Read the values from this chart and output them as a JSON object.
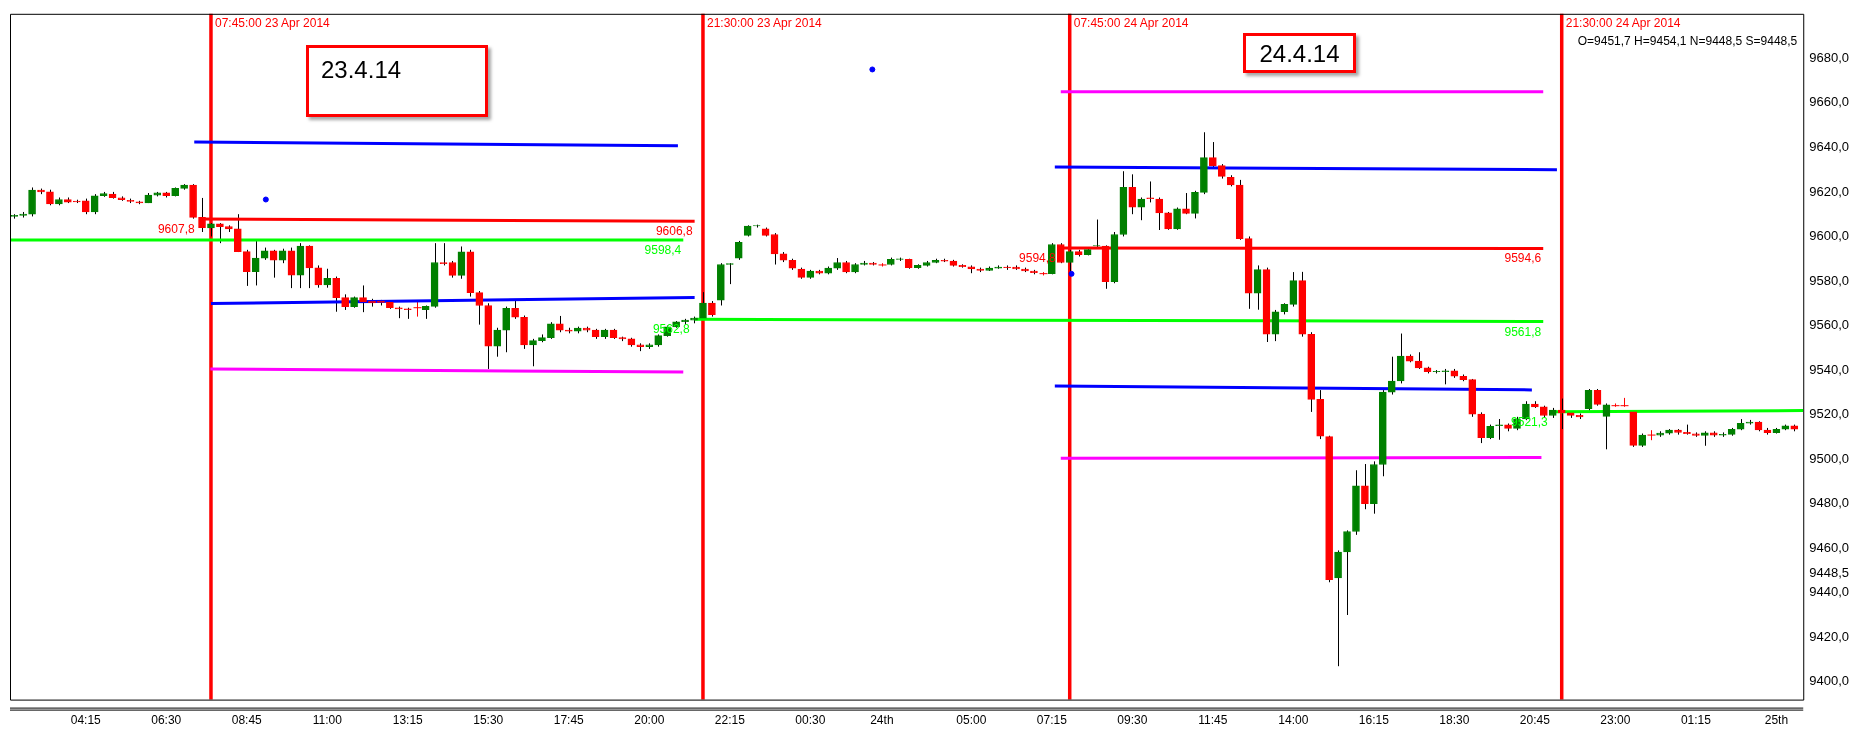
{
  "chart_data": {
    "type": "candlestick",
    "x": [
      "2014-04-23T02:15",
      "2014-04-23T02:30",
      "2014-04-23T02:45",
      "2014-04-23T03:00",
      "2014-04-23T03:15",
      "2014-04-23T03:30",
      "2014-04-23T03:45",
      "2014-04-23T04:00",
      "2014-04-23T04:15",
      "2014-04-23T04:30",
      "2014-04-23T04:45",
      "2014-04-23T05:00",
      "2014-04-23T05:15",
      "2014-04-23T05:30",
      "2014-04-23T05:45",
      "2014-04-23T06:00",
      "2014-04-23T06:15",
      "2014-04-23T06:30",
      "2014-04-23T06:45",
      "2014-04-23T07:00",
      "2014-04-23T07:15",
      "2014-04-23T07:30",
      "2014-04-23T07:45",
      "2014-04-23T08:00",
      "2014-04-23T08:15",
      "2014-04-23T08:30",
      "2014-04-23T08:45",
      "2014-04-23T09:00",
      "2014-04-23T09:15",
      "2014-04-23T09:30",
      "2014-04-23T09:45",
      "2014-04-23T10:00",
      "2014-04-23T10:15",
      "2014-04-23T10:30",
      "2014-04-23T10:45",
      "2014-04-23T11:00",
      "2014-04-23T11:15",
      "2014-04-23T11:30",
      "2014-04-23T11:45",
      "2014-04-23T12:00",
      "2014-04-23T12:15",
      "2014-04-23T12:30",
      "2014-04-23T12:45",
      "2014-04-23T13:00",
      "2014-04-23T13:15",
      "2014-04-23T13:30",
      "2014-04-23T13:45",
      "2014-04-23T14:00",
      "2014-04-23T14:15",
      "2014-04-23T14:30",
      "2014-04-23T14:45",
      "2014-04-23T15:00",
      "2014-04-23T15:15",
      "2014-04-23T15:30",
      "2014-04-23T15:45",
      "2014-04-23T16:00",
      "2014-04-23T16:15",
      "2014-04-23T16:30",
      "2014-04-23T16:45",
      "2014-04-23T17:00",
      "2014-04-23T17:15",
      "2014-04-23T17:30",
      "2014-04-23T17:45",
      "2014-04-23T18:00",
      "2014-04-23T18:15",
      "2014-04-23T18:30",
      "2014-04-23T18:45",
      "2014-04-23T19:00",
      "2014-04-23T19:15",
      "2014-04-23T19:30",
      "2014-04-23T19:45",
      "2014-04-23T20:00",
      "2014-04-23T20:15",
      "2014-04-23T20:30",
      "2014-04-23T20:45",
      "2014-04-23T21:00",
      "2014-04-23T21:15",
      "2014-04-23T21:30",
      "2014-04-23T21:45",
      "2014-04-23T22:00",
      "2014-04-23T22:15",
      "2014-04-23T22:30",
      "2014-04-23T22:45",
      "2014-04-23T23:00",
      "2014-04-23T23:15",
      "2014-04-23T23:30",
      "2014-04-23T23:45",
      "2014-04-24T00:00",
      "2014-04-24T00:15",
      "2014-04-24T00:30",
      "2014-04-24T00:45",
      "2014-04-24T01:00",
      "2014-04-24T01:15",
      "2014-04-24T01:30",
      "2014-04-24T01:45",
      "2014-04-24T02:00",
      "2014-04-24T02:15",
      "2014-04-24T02:30",
      "2014-04-24T02:45",
      "2014-04-24T03:00",
      "2014-04-24T03:15",
      "2014-04-24T03:30",
      "2014-04-24T03:45",
      "2014-04-24T04:00",
      "2014-04-24T04:15",
      "2014-04-24T04:30",
      "2014-04-24T04:45",
      "2014-04-24T05:00",
      "2014-04-24T05:15",
      "2014-04-24T05:30",
      "2014-04-24T05:45",
      "2014-04-24T06:00",
      "2014-04-24T06:15",
      "2014-04-24T06:30",
      "2014-04-24T06:45",
      "2014-04-24T07:00",
      "2014-04-24T07:15",
      "2014-04-24T07:30",
      "2014-04-24T07:45",
      "2014-04-24T08:00",
      "2014-04-24T08:15",
      "2014-04-24T08:30",
      "2014-04-24T08:45",
      "2014-04-24T09:00",
      "2014-04-24T09:15",
      "2014-04-24T09:30",
      "2014-04-24T09:45",
      "2014-04-24T10:00",
      "2014-04-24T10:15",
      "2014-04-24T10:30",
      "2014-04-24T10:45",
      "2014-04-24T11:00",
      "2014-04-24T11:15",
      "2014-04-24T11:30",
      "2014-04-24T11:45",
      "2014-04-24T12:00",
      "2014-04-24T12:15",
      "2014-04-24T12:30",
      "2014-04-24T12:45",
      "2014-04-24T13:00",
      "2014-04-24T13:15",
      "2014-04-24T13:30",
      "2014-04-24T13:45",
      "2014-04-24T14:00",
      "2014-04-24T14:15",
      "2014-04-24T14:30",
      "2014-04-24T14:45",
      "2014-04-24T15:00",
      "2014-04-24T15:15",
      "2014-04-24T15:30",
      "2014-04-24T15:45",
      "2014-04-24T16:00",
      "2014-04-24T16:15",
      "2014-04-24T16:30",
      "2014-04-24T16:45",
      "2014-04-24T17:00",
      "2014-04-24T17:15",
      "2014-04-24T17:30",
      "2014-04-24T17:45",
      "2014-04-24T18:00",
      "2014-04-24T18:15",
      "2014-04-24T18:30",
      "2014-04-24T18:45",
      "2014-04-24T19:00",
      "2014-04-24T19:15",
      "2014-04-24T19:30",
      "2014-04-24T19:45",
      "2014-04-24T20:00",
      "2014-04-24T20:15",
      "2014-04-24T20:30",
      "2014-04-24T20:45",
      "2014-04-24T21:00",
      "2014-04-24T21:15",
      "2014-04-24T21:30",
      "2014-04-24T21:45",
      "2014-04-24T22:00",
      "2014-04-24T22:15",
      "2014-04-24T22:30",
      "2014-04-24T22:45",
      "2014-04-24T23:00",
      "2014-04-24T23:15",
      "2014-04-24T23:30",
      "2014-04-24T23:45",
      "2014-04-25T00:00",
      "2014-04-25T00:15",
      "2014-04-25T00:30",
      "2014-04-25T00:45",
      "2014-04-25T01:00",
      "2014-04-25T01:15",
      "2014-04-25T01:30",
      "2014-04-25T01:45",
      "2014-04-25T02:00",
      "2014-04-25T02:15",
      "2014-04-25T02:30",
      "2014-04-25T02:45",
      "2014-04-25T03:00",
      "2014-04-25T03:15",
      "2014-04-25T03:30",
      "2014-04-25T03:45",
      "2014-04-25T04:00"
    ],
    "ohlc": [
      [
        9609,
        9610,
        9608,
        9609.5
      ],
      [
        9609.5,
        9611,
        9608.5,
        9610
      ],
      [
        9610,
        9622,
        9609,
        9620.8
      ],
      [
        9620.8,
        9621.5,
        9619,
        9620
      ],
      [
        9620,
        9621,
        9614,
        9614.6
      ],
      [
        9614.6,
        9617.5,
        9614,
        9616.6
      ],
      [
        9616.6,
        9617.5,
        9615,
        9615.4
      ],
      [
        9615.9,
        9616.5,
        9615,
        9615.5
      ],
      [
        9616,
        9617,
        9610,
        9611
      ],
      [
        9611,
        9619,
        9610,
        9618.3
      ],
      [
        9618.3,
        9620,
        9617.8,
        9619.3
      ],
      [
        9619,
        9620,
        9617,
        9617.4
      ],
      [
        9617.4,
        9618,
        9616,
        9616.5
      ],
      [
        9616.2,
        9617,
        9615,
        9615.7
      ],
      [
        9615.5,
        9616,
        9614.5,
        9615.1
      ],
      [
        9615.1,
        9619.5,
        9615,
        9618.6
      ],
      [
        9618.6,
        9620,
        9618,
        9619.6
      ],
      [
        9619.6,
        9620,
        9617.5,
        9618.3
      ],
      [
        9618.3,
        9622,
        9618,
        9621.6
      ],
      [
        9621.6,
        9623.5,
        9621,
        9623.1
      ],
      [
        9623.1,
        9623.5,
        9608,
        9608.6
      ],
      [
        9608.6,
        9617.3,
        9602,
        9604
      ],
      [
        9603.8,
        9606,
        9600,
        9605.7
      ],
      [
        9605.7,
        9606,
        9597,
        9604.4
      ],
      [
        9604.4,
        9605,
        9602,
        9603.4
      ],
      [
        9603.4,
        9610,
        9593,
        9593.2
      ],
      [
        9593.2,
        9594,
        9577.8,
        9584.2
      ],
      [
        9584.2,
        9598,
        9578,
        9590.3
      ],
      [
        9590.3,
        9595,
        9589.5,
        9593.5
      ],
      [
        9593.5,
        9594,
        9581.5,
        9589.3
      ],
      [
        9589.3,
        9594.5,
        9588,
        9593.6
      ],
      [
        9593.6,
        9595,
        9576.8,
        9582.6
      ],
      [
        9582.6,
        9597,
        9576.8,
        9595.7
      ],
      [
        9595.7,
        9596,
        9576.8,
        9585.9
      ],
      [
        9585.9,
        9587,
        9577,
        9578.2
      ],
      [
        9578.2,
        9585.5,
        9577,
        9581.2
      ],
      [
        9581.2,
        9582,
        9566.2,
        9572.5
      ],
      [
        9572.5,
        9574,
        9567,
        9568.5
      ],
      [
        9568.5,
        9573,
        9568,
        9572.5
      ],
      [
        9572.5,
        9578,
        9566,
        9570.6
      ],
      [
        9571,
        9572,
        9568.5,
        9570.2
      ],
      [
        9571,
        9571.5,
        9569,
        9570.4
      ],
      [
        9570.4,
        9571,
        9567.5,
        9568
      ],
      [
        9568,
        9568.5,
        9563.3,
        9567.5
      ],
      [
        9567.5,
        9568,
        9563,
        9567.1
      ],
      [
        9568,
        9571,
        9564,
        9568
      ],
      [
        9567.1,
        9569,
        9563,
        9568.6
      ],
      [
        9568.6,
        9597,
        9568,
        9588.3
      ],
      [
        9588.3,
        9597,
        9587,
        9587.8
      ],
      [
        9588.3,
        9589,
        9581.5,
        9582.5
      ],
      [
        9582.5,
        9595.5,
        9581,
        9593.1
      ],
      [
        9593.1,
        9594,
        9573,
        9574.8
      ],
      [
        9574.8,
        9575.5,
        9560.4,
        9569
      ],
      [
        9569,
        9570,
        9540.5,
        9550.7
      ],
      [
        9550.7,
        9559,
        9546,
        9557.9
      ],
      [
        9557.9,
        9568.5,
        9548,
        9567.7
      ],
      [
        9567.7,
        9571,
        9563,
        9563.7
      ],
      [
        9563.7,
        9564.5,
        9549.5,
        9551.3
      ],
      [
        9551.3,
        9554,
        9541.7,
        9553.2
      ],
      [
        9553.2,
        9556,
        9552.5,
        9554.6
      ],
      [
        9554.6,
        9561.5,
        9554,
        9560.8
      ],
      [
        9560.8,
        9564.3,
        9557,
        9557.9
      ],
      [
        9557.9,
        9559,
        9556.5,
        9557.5
      ],
      [
        9557.5,
        9559.5,
        9556.5,
        9558.8
      ],
      [
        9558.8,
        9559.5,
        9557,
        9557.9
      ],
      [
        9557.9,
        9558.5,
        9554,
        9555
      ],
      [
        9555,
        9558.5,
        9554,
        9557.9
      ],
      [
        9557.9,
        9558.5,
        9554,
        9554.6
      ],
      [
        9554.6,
        9555,
        9553,
        9554
      ],
      [
        9554,
        9554.5,
        9550.5,
        9551.3
      ],
      [
        9551.3,
        9552,
        9548.5,
        9550.5
      ],
      [
        9550.5,
        9552,
        9549.5,
        9551.3
      ],
      [
        9551.3,
        9556,
        9550.5,
        9555.5
      ],
      [
        9555.5,
        9560,
        9555,
        9559.4
      ],
      [
        9559.4,
        9562,
        9559,
        9561.7
      ],
      [
        9561.7,
        9563,
        9560.5,
        9562.4
      ],
      [
        9562.4,
        9564,
        9561,
        9563.3
      ],
      [
        9563.3,
        9575,
        9562.5,
        9570.1
      ],
      [
        9570.1,
        9571,
        9564,
        9564.9
      ],
      [
        9571.4,
        9588,
        9569,
        9587.4
      ],
      [
        9587.4,
        9588,
        9578.6,
        9587.8
      ],
      [
        9590.3,
        9598,
        9589.5,
        9597.4
      ],
      [
        9600.5,
        9605,
        9600,
        9604.7
      ],
      [
        9604.7,
        9605.3,
        9604,
        9604.9
      ],
      [
        9603.4,
        9604,
        9600,
        9600.5
      ],
      [
        9600.9,
        9601.5,
        9587.4,
        9592.2
      ],
      [
        9592.2,
        9593,
        9588.5,
        9589.3
      ],
      [
        9589.3,
        9590,
        9585,
        9585.8
      ],
      [
        9585.4,
        9586,
        9581,
        9581.6
      ],
      [
        9581.6,
        9585,
        9581,
        9584.5
      ],
      [
        9584.5,
        9585,
        9583,
        9583.5
      ],
      [
        9583.5,
        9586.5,
        9583,
        9585.8
      ],
      [
        9585.8,
        9590.3,
        9585,
        9588.3
      ],
      [
        9588.3,
        9589,
        9583.5,
        9584.1
      ],
      [
        9584.1,
        9588,
        9583.5,
        9587.4
      ],
      [
        9587.4,
        9589,
        9587,
        9588
      ],
      [
        9588,
        9588.5,
        9587,
        9587.4
      ],
      [
        9587.2,
        9588,
        9586.5,
        9587.2
      ],
      [
        9587.4,
        9590.5,
        9587,
        9589.7
      ],
      [
        9589.7,
        9590.5,
        9589,
        9589.9
      ],
      [
        9589.7,
        9590,
        9585.5,
        9586
      ],
      [
        9586,
        9587.5,
        9585.5,
        9587
      ],
      [
        9587,
        9589,
        9586.5,
        9588.3
      ],
      [
        9588.3,
        9590,
        9588,
        9589.3
      ],
      [
        9589.3,
        9590,
        9588.5,
        9588.9
      ],
      [
        9588.9,
        9589.5,
        9586.5,
        9587
      ],
      [
        9587,
        9587.5,
        9586,
        9586.4
      ],
      [
        9586.4,
        9587,
        9583.5,
        9585.4
      ],
      [
        9585.4,
        9586,
        9584,
        9584.8
      ],
      [
        9584.8,
        9586.5,
        9584.5,
        9585.8
      ],
      [
        9585.8,
        9587,
        9585.5,
        9586.2
      ],
      [
        9586.2,
        9587,
        9585,
        9586
      ],
      [
        9586.2,
        9587,
        9585,
        9585.4
      ],
      [
        9585.4,
        9586,
        9584,
        9584.5
      ],
      [
        9584.5,
        9585,
        9583,
        9583.7
      ],
      [
        9583.3,
        9584,
        9582.5,
        9583.3
      ],
      [
        9583.3,
        9597,
        9583,
        9596.4
      ],
      [
        9596.4,
        9597,
        9588,
        9588.3
      ],
      [
        9588.3,
        9594,
        9584,
        9593.2
      ],
      [
        9593.2,
        9594,
        9591,
        9591.8
      ],
      [
        9591.8,
        9595,
        9591.5,
        9594.1
      ],
      [
        9595.7,
        9607.6,
        9595,
        9595.9
      ],
      [
        9595.7,
        9596,
        9576.5,
        9579.7
      ],
      [
        9579.7,
        9602,
        9579,
        9600.9
      ],
      [
        9600.9,
        9629.3,
        9600,
        9622.1
      ],
      [
        9622.1,
        9627.9,
        9610,
        9613.1
      ],
      [
        9613.1,
        9617.5,
        9607.3,
        9616.8
      ],
      [
        9617.3,
        9624.7,
        9615.3,
        9617
      ],
      [
        9616.8,
        9617.5,
        9602.9,
        9610.6
      ],
      [
        9610.6,
        9611,
        9603,
        9603.4
      ],
      [
        9603.4,
        9613,
        9603,
        9612.4
      ],
      [
        9612.4,
        9619.5,
        9610,
        9610.4
      ],
      [
        9610.4,
        9620.5,
        9608.1,
        9619.8
      ],
      [
        9619.8,
        9646.8,
        9619,
        9635.4
      ],
      [
        9635.4,
        9642.4,
        9631,
        9631.8
      ],
      [
        9631.8,
        9632.5,
        9626,
        9627
      ],
      [
        9626.6,
        9627.5,
        9622.5,
        9623.1
      ],
      [
        9623.1,
        9625.4,
        9598.5,
        9599
      ],
      [
        9599,
        9600,
        9567.5,
        9574.5
      ],
      [
        9574.5,
        9587,
        9567.1,
        9585.1
      ],
      [
        9585.1,
        9586,
        9552.6,
        9556.1
      ],
      [
        9556.1,
        9567,
        9553,
        9566.2
      ],
      [
        9566.2,
        9570,
        9565,
        9569.5
      ],
      [
        9569.5,
        9584,
        9568.5,
        9580.2
      ],
      [
        9580.2,
        9584.1,
        9555,
        9556.1
      ],
      [
        9556.1,
        9557,
        9521.2,
        9526.8
      ],
      [
        9526.8,
        9531,
        9509,
        9510.3
      ],
      [
        9510.1,
        9510.5,
        9444.7,
        9445.9
      ],
      [
        9446.6,
        9459,
        9407,
        9458.3
      ],
      [
        9458.3,
        9468,
        9430,
        9467.5
      ],
      [
        9467.5,
        9495,
        9466,
        9488
      ],
      [
        9488,
        9497.8,
        9477.5,
        9480
      ],
      [
        9480,
        9499,
        9475.5,
        9497.6
      ],
      [
        9497.6,
        9531,
        9492.3,
        9530.1
      ],
      [
        9530.1,
        9546,
        9529,
        9535.1
      ],
      [
        9535.1,
        9556.4,
        9534,
        9546.3
      ],
      [
        9546.3,
        9547,
        9543.5,
        9544
      ],
      [
        9544,
        9548,
        9540.5,
        9541
      ],
      [
        9541,
        9541.5,
        9538.5,
        9539.3
      ],
      [
        9539.3,
        9540,
        9538.5,
        9539.4
      ],
      [
        9539.3,
        9540.5,
        9533.6,
        9539.7
      ],
      [
        9539.7,
        9540.5,
        9536.5,
        9537.2
      ],
      [
        9537.2,
        9538,
        9535,
        9535.7
      ],
      [
        9535.7,
        9536,
        9519,
        9520.2
      ],
      [
        9520.2,
        9521,
        9507.2,
        9509.6
      ],
      [
        9509.6,
        9515.5,
        9509,
        9514.7
      ],
      [
        9515,
        9518,
        9508.7,
        9515.4
      ],
      [
        9515.4,
        9516,
        9512.5,
        9513.8
      ],
      [
        9513.8,
        9519,
        9513,
        9518.1
      ],
      [
        9518.1,
        9526,
        9517.5,
        9524.7
      ],
      [
        9524.7,
        9526,
        9523,
        9523.5
      ],
      [
        9523.5,
        9524,
        9518.5,
        9519.6
      ],
      [
        9519.6,
        9523,
        9518.5,
        9522
      ],
      [
        9522,
        9527.2,
        9513.5,
        9520.8
      ],
      [
        9520.8,
        9521.5,
        9518.5,
        9519.6
      ],
      [
        9519.7,
        9520.5,
        9518,
        9519
      ],
      [
        9522.7,
        9531.5,
        9521.5,
        9530.9
      ],
      [
        9530.9,
        9531.5,
        9524,
        9524.6
      ],
      [
        9519.2,
        9525,
        9504.4,
        9524.4
      ],
      [
        9524,
        9525,
        9523.5,
        9524
      ],
      [
        9524,
        9527.5,
        9523.5,
        9524
      ],
      [
        9521.2,
        9522,
        9505.5,
        9506.2
      ],
      [
        9506.2,
        9511.5,
        9505.5,
        9510.8
      ],
      [
        9510.8,
        9513,
        9508.5,
        9510.8
      ],
      [
        9510.8,
        9512.5,
        9510,
        9511.7
      ],
      [
        9511.7,
        9513.5,
        9511,
        9513
      ],
      [
        9513,
        9513.5,
        9511,
        9512
      ],
      [
        9512,
        9515.5,
        9511,
        9511.4
      ],
      [
        9511.4,
        9512,
        9510,
        9510.7
      ],
      [
        9510.7,
        9512.5,
        9506,
        9511.8
      ],
      [
        9511.8,
        9512.5,
        9510,
        9510.8
      ],
      [
        9510.8,
        9512,
        9510,
        9511.1
      ],
      [
        9511.1,
        9514,
        9510.5,
        9513.4
      ],
      [
        9513.4,
        9518,
        9513,
        9516.1
      ],
      [
        9516.1,
        9517.6,
        9515.5,
        9516.6
      ],
      [
        9516.6,
        9517,
        9512.5,
        9513.1
      ],
      [
        9513.1,
        9514,
        9511,
        9511.9
      ],
      [
        9511.9,
        9514,
        9511.5,
        9513.4
      ],
      [
        9513.4,
        9515.5,
        9513,
        9515
      ],
      [
        9515,
        9515.5,
        9512.5,
        9513.4
      ]
    ],
    "series": [
      {
        "type": "line",
        "color": "#0000ff",
        "x": [
          "2014-04-23T07:17",
          "2014-04-23T20:48"
        ],
        "values": [
          9642.4,
          9640.7
        ]
      },
      {
        "type": "line",
        "color": "#ff0000",
        "x": [
          "2014-04-23T07:26",
          "2014-04-23T21:16"
        ],
        "values": [
          9607.8,
          9606.8
        ],
        "value_labels": [
          "9607,8",
          "9606,8"
        ]
      },
      {
        "type": "line",
        "color": "#00ff00",
        "x": [
          "2014-04-23T02:08",
          "2014-04-23T20:57"
        ],
        "values": [
          9598.4,
          9598.4
        ],
        "value_labels": [
          null,
          "9598,4"
        ]
      },
      {
        "type": "line",
        "color": "#0000ff",
        "x": [
          "2014-04-23T07:45",
          "2014-04-23T21:16"
        ],
        "values": [
          9569.9,
          9572.6
        ]
      },
      {
        "type": "line",
        "color": "#ff00ff",
        "x": [
          "2014-04-23T07:44",
          "2014-04-23T20:57"
        ],
        "values": [
          9540.5,
          9539.1
        ]
      },
      {
        "type": "line",
        "color": "#00ff00",
        "x": [
          "2014-04-23T21:16",
          "2014-04-24T20:59"
        ],
        "values": [
          9562.8,
          9561.8
        ],
        "value_labels": [
          "9562,8",
          "9561,8"
        ]
      },
      {
        "type": "line",
        "color": "#ff00ff",
        "x": [
          "2014-04-24T07:30",
          "2014-04-24T20:59"
        ],
        "values": [
          9665,
          9665
        ]
      },
      {
        "type": "line",
        "color": "#0000ff",
        "x": [
          "2014-04-24T07:20",
          "2014-04-24T21:22"
        ],
        "values": [
          9631.2,
          9630
        ]
      },
      {
        "type": "line",
        "color": "#ff0000",
        "x": [
          "2014-04-24T07:30",
          "2014-04-24T20:59"
        ],
        "values": [
          9594.8,
          9594.6
        ],
        "value_labels": [
          "9594,8",
          "9594,6"
        ]
      },
      {
        "type": "line",
        "color": "#0000ff",
        "x": [
          "2014-04-24T07:20",
          "2014-04-24T20:40"
        ],
        "values": [
          9532.8,
          9531.1
        ]
      },
      {
        "type": "line",
        "color": "#ff00ff",
        "x": [
          "2014-04-24T07:30",
          "2014-04-24T20:56"
        ],
        "values": [
          9500.4,
          9500.7
        ]
      },
      {
        "type": "line",
        "color": "#00ff00",
        "x": [
          "2014-04-24T21:15",
          "2014-04-25T04:15"
        ],
        "values": [
          9521.3,
          9521.8
        ],
        "value_labels": [
          "9521,3",
          null
        ]
      },
      {
        "type": "scatter",
        "color": "#0000ff",
        "marker": "circle",
        "x": [
          "2014-04-23T09:17",
          "2014-04-24T02:14",
          "2014-04-24T07:48"
        ],
        "values": [
          9616.6,
          9675,
          9583.2
        ]
      }
    ],
    "ref_lines": [
      {
        "axis": "x",
        "value": "2014-04-23T07:45",
        "label": "07:45:00 23 Apr 2014",
        "color": "#ff0000"
      },
      {
        "axis": "x",
        "value": "2014-04-23T21:30",
        "label": "21:30:00 23 Apr 2014",
        "color": "#ff0000"
      },
      {
        "axis": "x",
        "value": "2014-04-24T07:45",
        "label": "07:45:00 24 Apr 2014",
        "color": "#ff0000"
      },
      {
        "axis": "x",
        "value": "2014-04-24T21:30",
        "label": "21:30:00 24 Apr 2014",
        "color": "#ff0000"
      }
    ],
    "annotations": [
      "23.4.14",
      "24.4.14",
      "O=9451,7 H=9454,1 N=9448,5 S=9448,5"
    ],
    "xlim": [
      "2014-04-23T02:08",
      "2014-04-25T04:15"
    ],
    "xticks": [
      {
        "value": "2014-04-23T04:15",
        "label": "04:15"
      },
      {
        "value": "2014-04-23T06:30",
        "label": "06:30"
      },
      {
        "value": "2014-04-23T08:45",
        "label": "08:45"
      },
      {
        "value": "2014-04-23T11:00",
        "label": "11:00"
      },
      {
        "value": "2014-04-23T13:15",
        "label": "13:15"
      },
      {
        "value": "2014-04-23T15:30",
        "label": "15:30"
      },
      {
        "value": "2014-04-23T17:45",
        "label": "17:45"
      },
      {
        "value": "2014-04-23T20:00",
        "label": "20:00"
      },
      {
        "value": "2014-04-23T22:15",
        "label": "22:15"
      },
      {
        "value": "2014-04-24T00:30",
        "label": "00:30"
      },
      {
        "value": "2014-04-24T02:30",
        "label": "24th"
      },
      {
        "value": "2014-04-24T05:00",
        "label": "05:00"
      },
      {
        "value": "2014-04-24T07:15",
        "label": "07:15"
      },
      {
        "value": "2014-04-24T09:30",
        "label": "09:30"
      },
      {
        "value": "2014-04-24T11:45",
        "label": "11:45"
      },
      {
        "value": "2014-04-24T14:00",
        "label": "14:00"
      },
      {
        "value": "2014-04-24T16:15",
        "label": "16:15"
      },
      {
        "value": "2014-04-24T18:30",
        "label": "18:30"
      },
      {
        "value": "2014-04-24T20:45",
        "label": "20:45"
      },
      {
        "value": "2014-04-24T23:00",
        "label": "23:00"
      },
      {
        "value": "2014-04-25T01:15",
        "label": "01:15"
      },
      {
        "value": "2014-04-25T03:30",
        "label": "25th"
      }
    ],
    "ylim": [
      9392,
      9700
    ],
    "yticks": [
      {
        "value": 9400,
        "label": "9400,0"
      },
      {
        "value": 9420,
        "label": "9420,0"
      },
      {
        "value": 9440,
        "label": "9440,0"
      },
      {
        "value": 9448.5,
        "label": "9448,5"
      },
      {
        "value": 9460,
        "label": "9460,0"
      },
      {
        "value": 9480,
        "label": "9480,0"
      },
      {
        "value": 9500,
        "label": "9500,0"
      },
      {
        "value": 9520,
        "label": "9520,0"
      },
      {
        "value": 9540,
        "label": "9540,0"
      },
      {
        "value": 9560,
        "label": "9560,0"
      },
      {
        "value": 9580,
        "label": "9580,0"
      },
      {
        "value": 9600,
        "label": "9600,0"
      },
      {
        "value": 9620,
        "label": "9620,0"
      },
      {
        "value": 9640,
        "label": "9640,0"
      },
      {
        "value": 9660,
        "label": "9660,0"
      },
      {
        "value": 9680,
        "label": "9680,0"
      }
    ]
  }
}
